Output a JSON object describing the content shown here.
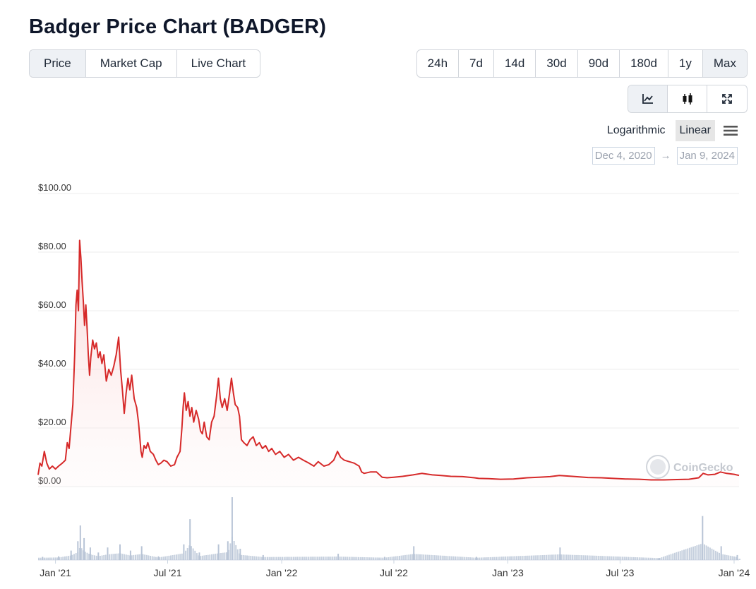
{
  "page": {
    "title": "Badger Price Chart (BADGER)"
  },
  "tabs": [
    {
      "label": "Price",
      "active": true
    },
    {
      "label": "Market Cap",
      "active": false
    },
    {
      "label": "Live Chart",
      "active": false
    }
  ],
  "ranges": [
    {
      "label": "24h",
      "active": false
    },
    {
      "label": "7d",
      "active": false
    },
    {
      "label": "14d",
      "active": false
    },
    {
      "label": "30d",
      "active": false
    },
    {
      "label": "90d",
      "active": false
    },
    {
      "label": "180d",
      "active": false
    },
    {
      "label": "1y",
      "active": false
    },
    {
      "label": "Max",
      "active": true
    }
  ],
  "chart_types": [
    {
      "icon": "line-chart-icon",
      "active": true
    },
    {
      "icon": "candlestick-icon",
      "active": false
    },
    {
      "icon": "expand-icon",
      "active": false
    }
  ],
  "scale": {
    "options": [
      "Logarithmic",
      "Linear"
    ],
    "selected": "Linear",
    "menu_icon": "hamburger-menu-icon"
  },
  "date_range": {
    "from": "Dec 4, 2020",
    "arrow": "→",
    "to": "Jan 9, 2024"
  },
  "colors": {
    "line": "#d62a2a",
    "fill": "#fde8e8",
    "volume": "#b8c4d6",
    "grid": "#ececec"
  },
  "watermark": "CoinGecko",
  "chart_data": {
    "type": "area",
    "title": "",
    "xlabel": "",
    "ylabel": "",
    "ylim": [
      0,
      100
    ],
    "xlim": [
      "2020-12-04",
      "2024-01-09"
    ],
    "y_ticks": [
      {
        "value": 0,
        "label": "$0.00"
      },
      {
        "value": 20,
        "label": "$20.00"
      },
      {
        "value": 40,
        "label": "$40.00"
      },
      {
        "value": 60,
        "label": "$60.00"
      },
      {
        "value": 80,
        "label": "$80.00"
      },
      {
        "value": 100,
        "label": "$100.00"
      }
    ],
    "x_ticks": [
      {
        "date": "2021-01-01",
        "label": "Jan '21"
      },
      {
        "date": "2021-07-01",
        "label": "Jul '21"
      },
      {
        "date": "2022-01-01",
        "label": "Jan '22"
      },
      {
        "date": "2022-07-01",
        "label": "Jul '22"
      },
      {
        "date": "2023-01-01",
        "label": "Jan '23"
      },
      {
        "date": "2023-07-01",
        "label": "Jul '23"
      },
      {
        "date": "2024-01-01",
        "label": "Jan '24"
      }
    ],
    "grid": true,
    "series": [
      {
        "points": [
          [
            "2020-12-04",
            4
          ],
          [
            "2020-12-07",
            8
          ],
          [
            "2020-12-10",
            7
          ],
          [
            "2020-12-14",
            12
          ],
          [
            "2020-12-18",
            8
          ],
          [
            "2020-12-22",
            6
          ],
          [
            "2020-12-27",
            7
          ],
          [
            "2021-01-01",
            6
          ],
          [
            "2021-01-06",
            7
          ],
          [
            "2021-01-12",
            8
          ],
          [
            "2021-01-17",
            9
          ],
          [
            "2021-01-20",
            15
          ],
          [
            "2021-01-23",
            13
          ],
          [
            "2021-01-27",
            23
          ],
          [
            "2021-01-29",
            28
          ],
          [
            "2021-02-01",
            45
          ],
          [
            "2021-02-03",
            62
          ],
          [
            "2021-02-05",
            67
          ],
          [
            "2021-02-07",
            60
          ],
          [
            "2021-02-09",
            84
          ],
          [
            "2021-02-11",
            78
          ],
          [
            "2021-02-13",
            70
          ],
          [
            "2021-02-15",
            63
          ],
          [
            "2021-02-17",
            55
          ],
          [
            "2021-02-19",
            62
          ],
          [
            "2021-02-21",
            54
          ],
          [
            "2021-02-23",
            45
          ],
          [
            "2021-02-25",
            38
          ],
          [
            "2021-02-27",
            44
          ],
          [
            "2021-03-02",
            50
          ],
          [
            "2021-03-05",
            47
          ],
          [
            "2021-03-08",
            49
          ],
          [
            "2021-03-11",
            44
          ],
          [
            "2021-03-14",
            46
          ],
          [
            "2021-03-17",
            42
          ],
          [
            "2021-03-20",
            45
          ],
          [
            "2021-03-24",
            36
          ],
          [
            "2021-03-28",
            40
          ],
          [
            "2021-04-01",
            38
          ],
          [
            "2021-04-05",
            41
          ],
          [
            "2021-04-09",
            45
          ],
          [
            "2021-04-13",
            51
          ],
          [
            "2021-04-16",
            40
          ],
          [
            "2021-04-19",
            33
          ],
          [
            "2021-04-22",
            25
          ],
          [
            "2021-04-25",
            32
          ],
          [
            "2021-04-28",
            37
          ],
          [
            "2021-05-01",
            33
          ],
          [
            "2021-05-04",
            38
          ],
          [
            "2021-05-08",
            30
          ],
          [
            "2021-05-12",
            27
          ],
          [
            "2021-05-15",
            22
          ],
          [
            "2021-05-17",
            17
          ],
          [
            "2021-05-19",
            12
          ],
          [
            "2021-05-21",
            10
          ],
          [
            "2021-05-24",
            14
          ],
          [
            "2021-05-27",
            13
          ],
          [
            "2021-05-30",
            15
          ],
          [
            "2021-06-03",
            12
          ],
          [
            "2021-06-08",
            11
          ],
          [
            "2021-06-12",
            9
          ],
          [
            "2021-06-16",
            7.5
          ],
          [
            "2021-06-20",
            8
          ],
          [
            "2021-06-25",
            9
          ],
          [
            "2021-06-30",
            8.5
          ],
          [
            "2021-07-06",
            7
          ],
          [
            "2021-07-12",
            7.5
          ],
          [
            "2021-07-16",
            10
          ],
          [
            "2021-07-21",
            12
          ],
          [
            "2021-07-24",
            20
          ],
          [
            "2021-07-26",
            27
          ],
          [
            "2021-07-28",
            32
          ],
          [
            "2021-07-31",
            26
          ],
          [
            "2021-08-03",
            29
          ],
          [
            "2021-08-06",
            24
          ],
          [
            "2021-08-09",
            27
          ],
          [
            "2021-08-12",
            22
          ],
          [
            "2021-08-16",
            26
          ],
          [
            "2021-08-20",
            23
          ],
          [
            "2021-08-23",
            19
          ],
          [
            "2021-08-26",
            18
          ],
          [
            "2021-08-29",
            22
          ],
          [
            "2021-09-02",
            17
          ],
          [
            "2021-09-06",
            16
          ],
          [
            "2021-09-10",
            22
          ],
          [
            "2021-09-14",
            24
          ],
          [
            "2021-09-18",
            31
          ],
          [
            "2021-09-21",
            37
          ],
          [
            "2021-09-24",
            30
          ],
          [
            "2021-09-27",
            27
          ],
          [
            "2021-10-01",
            30
          ],
          [
            "2021-10-05",
            26
          ],
          [
            "2021-10-09",
            32
          ],
          [
            "2021-10-12",
            37
          ],
          [
            "2021-10-15",
            32
          ],
          [
            "2021-10-18",
            28
          ],
          [
            "2021-10-22",
            27
          ],
          [
            "2021-10-25",
            24
          ],
          [
            "2021-10-28",
            16
          ],
          [
            "2021-11-01",
            15
          ],
          [
            "2021-11-06",
            14
          ],
          [
            "2021-11-11",
            16
          ],
          [
            "2021-11-16",
            17
          ],
          [
            "2021-11-21",
            14
          ],
          [
            "2021-11-26",
            15
          ],
          [
            "2021-12-01",
            13
          ],
          [
            "2021-12-06",
            14
          ],
          [
            "2021-12-11",
            12
          ],
          [
            "2021-12-16",
            13
          ],
          [
            "2021-12-22",
            11
          ],
          [
            "2021-12-29",
            12
          ],
          [
            "2022-01-05",
            10
          ],
          [
            "2022-01-12",
            11
          ],
          [
            "2022-01-20",
            9
          ],
          [
            "2022-01-28",
            10
          ],
          [
            "2022-02-05",
            9
          ],
          [
            "2022-02-14",
            8
          ],
          [
            "2022-02-22",
            7
          ],
          [
            "2022-03-01",
            8.5
          ],
          [
            "2022-03-10",
            7
          ],
          [
            "2022-03-18",
            7.5
          ],
          [
            "2022-03-26",
            9
          ],
          [
            "2022-04-01",
            12
          ],
          [
            "2022-04-06",
            10
          ],
          [
            "2022-04-12",
            9
          ],
          [
            "2022-04-20",
            8.5
          ],
          [
            "2022-04-28",
            8
          ],
          [
            "2022-05-06",
            7
          ],
          [
            "2022-05-10",
            5
          ],
          [
            "2022-05-14",
            4.5
          ],
          [
            "2022-05-24",
            5
          ],
          [
            "2022-06-03",
            5
          ],
          [
            "2022-06-12",
            3.2
          ],
          [
            "2022-06-20",
            3
          ],
          [
            "2022-07-01",
            3.2
          ],
          [
            "2022-07-15",
            3.5
          ],
          [
            "2022-08-01",
            4
          ],
          [
            "2022-08-15",
            4.5
          ],
          [
            "2022-09-01",
            4
          ],
          [
            "2022-09-15",
            3.8
          ],
          [
            "2022-10-01",
            3.5
          ],
          [
            "2022-10-20",
            3.4
          ],
          [
            "2022-11-08",
            3
          ],
          [
            "2022-11-15",
            2.8
          ],
          [
            "2022-12-01",
            2.7
          ],
          [
            "2022-12-20",
            2.5
          ],
          [
            "2023-01-10",
            2.6
          ],
          [
            "2023-02-01",
            3
          ],
          [
            "2023-02-20",
            3.2
          ],
          [
            "2023-03-10",
            3.4
          ],
          [
            "2023-03-25",
            3.8
          ],
          [
            "2023-04-15",
            3.5
          ],
          [
            "2023-05-10",
            3.1
          ],
          [
            "2023-06-01",
            3
          ],
          [
            "2023-06-20",
            2.8
          ],
          [
            "2023-07-10",
            2.6
          ],
          [
            "2023-08-01",
            2.5
          ],
          [
            "2023-08-20",
            2.3
          ],
          [
            "2023-09-10",
            2.3
          ],
          [
            "2023-10-01",
            2.4
          ],
          [
            "2023-10-20",
            2.5
          ],
          [
            "2023-11-05",
            3
          ],
          [
            "2023-11-12",
            4.5
          ],
          [
            "2023-11-20",
            4
          ],
          [
            "2023-12-01",
            4.2
          ],
          [
            "2023-12-10",
            5
          ],
          [
            "2023-12-20",
            4.5
          ],
          [
            "2024-01-01",
            4.2
          ],
          [
            "2024-01-09",
            3.8
          ]
        ]
      }
    ],
    "volume": {
      "note_units": "relative",
      "points": [
        [
          "2020-12-10",
          0.05
        ],
        [
          "2021-01-05",
          0.06
        ],
        [
          "2021-01-25",
          0.15
        ],
        [
          "2021-02-05",
          0.3
        ],
        [
          "2021-02-09",
          0.55
        ],
        [
          "2021-02-15",
          0.35
        ],
        [
          "2021-02-25",
          0.2
        ],
        [
          "2021-03-10",
          0.12
        ],
        [
          "2021-03-25",
          0.2
        ],
        [
          "2021-04-14",
          0.25
        ],
        [
          "2021-05-01",
          0.15
        ],
        [
          "2021-05-19",
          0.22
        ],
        [
          "2021-06-15",
          0.06
        ],
        [
          "2021-07-26",
          0.25
        ],
        [
          "2021-08-05",
          0.65
        ],
        [
          "2021-08-20",
          0.12
        ],
        [
          "2021-09-20",
          0.25
        ],
        [
          "2021-10-05",
          0.3
        ],
        [
          "2021-10-12",
          1.0
        ],
        [
          "2021-10-25",
          0.18
        ],
        [
          "2021-12-01",
          0.08
        ],
        [
          "2022-04-01",
          0.1
        ],
        [
          "2022-06-15",
          0.05
        ],
        [
          "2022-08-01",
          0.22
        ],
        [
          "2022-11-10",
          0.05
        ],
        [
          "2023-03-25",
          0.2
        ],
        [
          "2023-09-01",
          0.03
        ],
        [
          "2023-11-10",
          0.7
        ],
        [
          "2023-12-10",
          0.22
        ],
        [
          "2024-01-05",
          0.08
        ]
      ]
    }
  }
}
